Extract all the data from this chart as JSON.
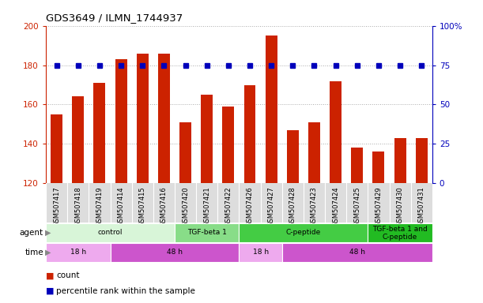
{
  "title": "GDS3649 / ILMN_1744937",
  "samples": [
    "GSM507417",
    "GSM507418",
    "GSM507419",
    "GSM507414",
    "GSM507415",
    "GSM507416",
    "GSM507420",
    "GSM507421",
    "GSM507422",
    "GSM507426",
    "GSM507427",
    "GSM507428",
    "GSM507423",
    "GSM507424",
    "GSM507425",
    "GSM507429",
    "GSM507430",
    "GSM507431"
  ],
  "counts": [
    155,
    164,
    171,
    183,
    186,
    186,
    151,
    165,
    159,
    170,
    195,
    147,
    151,
    172,
    138,
    136,
    143,
    143
  ],
  "percentiles": [
    75,
    75,
    75,
    75,
    75,
    75,
    75,
    75,
    75,
    75,
    75,
    75,
    75,
    75,
    75,
    75,
    75,
    75
  ],
  "ylim_left": [
    120,
    200
  ],
  "ylim_right": [
    0,
    100
  ],
  "yticks_left": [
    120,
    140,
    160,
    180,
    200
  ],
  "yticks_right": [
    0,
    25,
    50,
    75,
    100
  ],
  "bar_color": "#cc2200",
  "dot_color": "#0000bb",
  "gridline_color": "#aaaaaa",
  "agent_groups": [
    {
      "label": "control",
      "start": 0,
      "end": 6,
      "color": "#d8f5d8"
    },
    {
      "label": "TGF-beta 1",
      "start": 6,
      "end": 9,
      "color": "#88dd88"
    },
    {
      "label": "C-peptide",
      "start": 9,
      "end": 15,
      "color": "#44cc44"
    },
    {
      "label": "TGF-beta 1 and\nC-peptide",
      "start": 15,
      "end": 18,
      "color": "#22bb22"
    }
  ],
  "time_groups": [
    {
      "label": "18 h",
      "start": 0,
      "end": 3,
      "color": "#eeaaee"
    },
    {
      "label": "48 h",
      "start": 3,
      "end": 9,
      "color": "#cc55cc"
    },
    {
      "label": "18 h",
      "start": 9,
      "end": 11,
      "color": "#eeaaee"
    },
    {
      "label": "48 h",
      "start": 11,
      "end": 18,
      "color": "#cc55cc"
    }
  ],
  "left_axis_color": "#cc2200",
  "right_axis_color": "#0000bb",
  "bar_width": 0.55,
  "tick_bg_color": "#dddddd"
}
